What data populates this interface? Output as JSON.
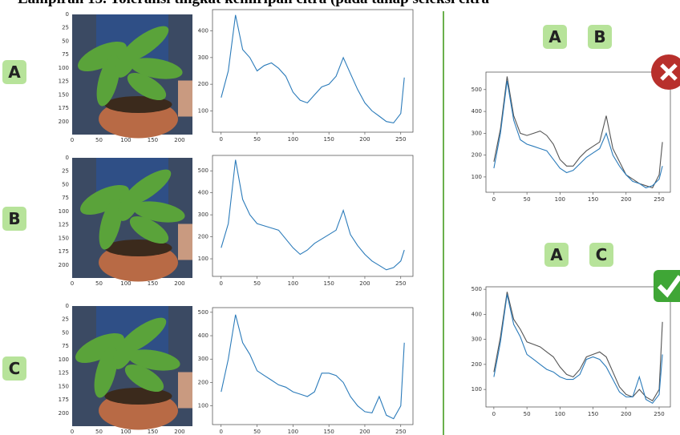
{
  "title": "Lampiran 15. Toleransi tingkat kemiripan citra (pada tahap seleksi citra",
  "panels": [
    {
      "label": "A"
    },
    {
      "label": "B"
    },
    {
      "label": "C"
    }
  ],
  "image_axes": {
    "xlim": [
      0,
      224
    ],
    "ylim": [
      0,
      224
    ],
    "xticks": [
      0,
      50,
      100,
      150,
      200
    ],
    "yticks": [
      0,
      25,
      50,
      75,
      100,
      125,
      150,
      175,
      200
    ]
  },
  "comparisons": [
    {
      "labels": [
        "A",
        "B"
      ]
    },
    {
      "labels": [
        "A",
        "C"
      ]
    }
  ],
  "chart_data": [
    {
      "type": "line",
      "x": [
        0,
        10,
        20,
        30,
        40,
        50,
        60,
        70,
        80,
        90,
        100,
        110,
        120,
        130,
        140,
        150,
        160,
        170,
        180,
        190,
        200,
        210,
        220,
        230,
        240,
        250,
        255
      ],
      "xlim": [
        -12,
        267
      ],
      "ylim": [
        20,
        480
      ],
      "xticks": [
        0,
        50,
        100,
        150,
        200,
        250
      ],
      "yticks": [
        100,
        200,
        300,
        400
      ],
      "series": [
        {
          "color": "#2b7bba",
          "values": [
            150,
            250,
            460,
            330,
            300,
            250,
            270,
            280,
            260,
            230,
            170,
            140,
            130,
            160,
            190,
            200,
            230,
            300,
            240,
            180,
            130,
            100,
            80,
            60,
            55,
            90,
            225
          ]
        }
      ]
    },
    {
      "type": "line",
      "x": [
        0,
        10,
        20,
        30,
        40,
        50,
        60,
        70,
        80,
        90,
        100,
        110,
        120,
        130,
        140,
        150,
        160,
        170,
        180,
        190,
        200,
        210,
        220,
        230,
        240,
        250,
        255
      ],
      "xlim": [
        -12,
        267
      ],
      "ylim": [
        20,
        570
      ],
      "xticks": [
        0,
        50,
        100,
        150,
        200,
        250
      ],
      "yticks": [
        100,
        200,
        300,
        400,
        500
      ],
      "series": [
        {
          "color": "#2b7bba",
          "values": [
            150,
            260,
            550,
            370,
            300,
            260,
            250,
            240,
            230,
            190,
            150,
            120,
            140,
            170,
            190,
            210,
            230,
            320,
            210,
            160,
            120,
            90,
            70,
            50,
            60,
            90,
            140
          ]
        }
      ]
    },
    {
      "type": "line",
      "x": [
        0,
        10,
        20,
        30,
        40,
        50,
        60,
        70,
        80,
        90,
        100,
        110,
        120,
        130,
        140,
        150,
        160,
        170,
        180,
        190,
        200,
        210,
        220,
        230,
        240,
        250,
        255
      ],
      "xlim": [
        -12,
        267
      ],
      "ylim": [
        20,
        520
      ],
      "xticks": [
        0,
        50,
        100,
        150,
        200,
        250
      ],
      "yticks": [
        100,
        200,
        300,
        400,
        500
      ],
      "series": [
        {
          "color": "#2b7bba",
          "values": [
            160,
            300,
            490,
            370,
            320,
            250,
            230,
            210,
            190,
            180,
            160,
            150,
            140,
            160,
            240,
            240,
            230,
            200,
            140,
            100,
            75,
            70,
            140,
            60,
            45,
            100,
            370
          ]
        }
      ]
    },
    {
      "type": "line",
      "x": [
        0,
        10,
        20,
        30,
        40,
        50,
        60,
        70,
        80,
        90,
        100,
        110,
        120,
        130,
        140,
        150,
        160,
        170,
        180,
        190,
        200,
        210,
        220,
        230,
        240,
        250,
        255
      ],
      "xlim": [
        -12,
        267
      ],
      "ylim": [
        30,
        580
      ],
      "xticks": [
        0,
        50,
        100,
        150,
        200,
        250
      ],
      "yticks": [
        100,
        200,
        300,
        400,
        500
      ],
      "series": [
        {
          "color": "#555555",
          "values": [
            170,
            320,
            560,
            380,
            300,
            290,
            300,
            310,
            290,
            250,
            180,
            150,
            150,
            190,
            220,
            240,
            260,
            380,
            230,
            170,
            110,
            90,
            70,
            60,
            50,
            110,
            260
          ]
        },
        {
          "color": "#2b7bba",
          "values": [
            140,
            300,
            540,
            360,
            270,
            250,
            240,
            230,
            220,
            180,
            140,
            120,
            130,
            160,
            190,
            210,
            230,
            300,
            200,
            150,
            110,
            80,
            70,
            50,
            60,
            90,
            150
          ]
        }
      ]
    },
    {
      "type": "line",
      "x": [
        0,
        10,
        20,
        30,
        40,
        50,
        60,
        70,
        80,
        90,
        100,
        110,
        120,
        130,
        140,
        150,
        160,
        170,
        180,
        190,
        200,
        210,
        220,
        230,
        240,
        250,
        255
      ],
      "xlim": [
        -12,
        267
      ],
      "ylim": [
        30,
        510
      ],
      "xticks": [
        0,
        50,
        100,
        150,
        200,
        250
      ],
      "yticks": [
        100,
        200,
        300,
        400,
        500
      ],
      "series": [
        {
          "color": "#555555",
          "values": [
            170,
            310,
            490,
            380,
            340,
            290,
            280,
            270,
            250,
            230,
            190,
            160,
            150,
            180,
            230,
            240,
            250,
            230,
            170,
            110,
            80,
            70,
            100,
            70,
            55,
            100,
            370
          ]
        },
        {
          "color": "#2b7bba",
          "values": [
            150,
            290,
            480,
            360,
            310,
            240,
            220,
            200,
            180,
            170,
            150,
            140,
            140,
            160,
            220,
            230,
            220,
            190,
            140,
            90,
            70,
            70,
            150,
            60,
            45,
            80,
            240
          ]
        }
      ]
    }
  ]
}
